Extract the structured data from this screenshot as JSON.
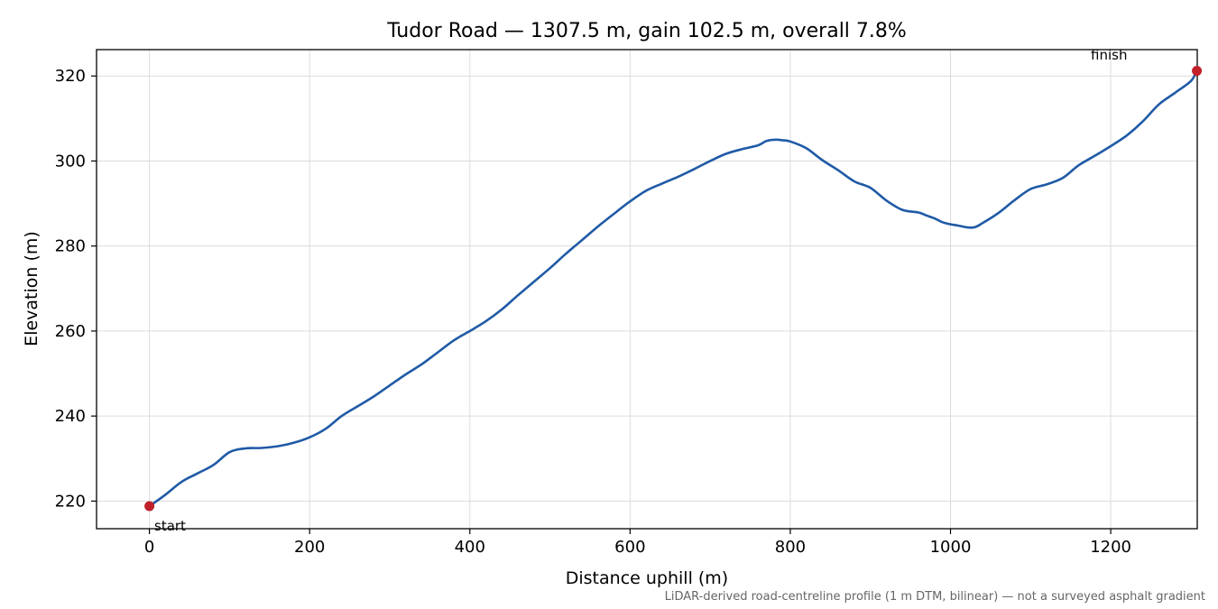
{
  "chart_data": {
    "type": "line",
    "title": "Tudor Road — 1307.5 m, gain 102.5 m, overall 7.8%",
    "xlabel": "Distance uphill (m)",
    "ylabel": "Elevation (m)",
    "xlim": [
      -66,
      1308
    ],
    "ylim": [
      213.5,
      326.2
    ],
    "xticks": [
      0,
      200,
      400,
      600,
      800,
      1000,
      1200
    ],
    "yticks": [
      220,
      240,
      260,
      280,
      300,
      320
    ],
    "grid": true,
    "line_color": "#1f5aa6",
    "marker_color": "#c0202a",
    "series": [
      {
        "x": [
          0,
          20,
          40,
          60,
          80,
          100,
          120,
          140,
          160,
          180,
          200,
          220,
          240,
          260,
          280,
          300,
          320,
          340,
          360,
          380,
          400,
          420,
          440,
          460,
          480,
          500,
          520,
          540,
          560,
          580,
          600,
          620,
          640,
          660,
          680,
          700,
          720,
          740,
          760,
          770,
          780,
          790,
          800,
          820,
          840,
          860,
          880,
          900,
          920,
          940,
          960,
          970,
          980,
          990,
          1000,
          1010,
          1020,
          1030,
          1040,
          1060,
          1080,
          1100,
          1120,
          1140,
          1160,
          1180,
          1200,
          1220,
          1240,
          1260,
          1280,
          1300,
          1307.5
        ],
        "y": [
          218.8,
          221.5,
          224.5,
          226.5,
          228.5,
          231.5,
          232.4,
          232.5,
          232.9,
          233.7,
          235.0,
          237.0,
          240.0,
          242.3,
          244.6,
          247.2,
          249.8,
          252.2,
          255.0,
          257.8,
          260.0,
          262.3,
          265.1,
          268.4,
          271.6,
          274.8,
          278.2,
          281.4,
          284.6,
          287.6,
          290.5,
          293.0,
          294.7,
          296.3,
          298.1,
          300.0,
          301.7,
          302.8,
          303.7,
          304.7,
          305.0,
          304.9,
          304.6,
          303.0,
          300.2,
          297.8,
          295.2,
          293.7,
          290.7,
          288.5,
          287.9,
          287.2,
          286.5,
          285.6,
          285.1,
          284.8,
          284.4,
          284.4,
          285.4,
          287.8,
          290.8,
          293.4,
          294.5,
          296.0,
          299.0,
          301.2,
          303.5,
          306.0,
          309.3,
          313.3,
          316.0,
          318.8,
          321.2
        ]
      }
    ],
    "annotations": [
      {
        "text": "start",
        "x": 0,
        "y": 218.8
      },
      {
        "text": "finish",
        "x": 1307.5,
        "y": 321.2
      }
    ],
    "footnote": "LiDAR-derived road-centreline profile (1 m DTM, bilinear) — not a surveyed asphalt gradient"
  }
}
